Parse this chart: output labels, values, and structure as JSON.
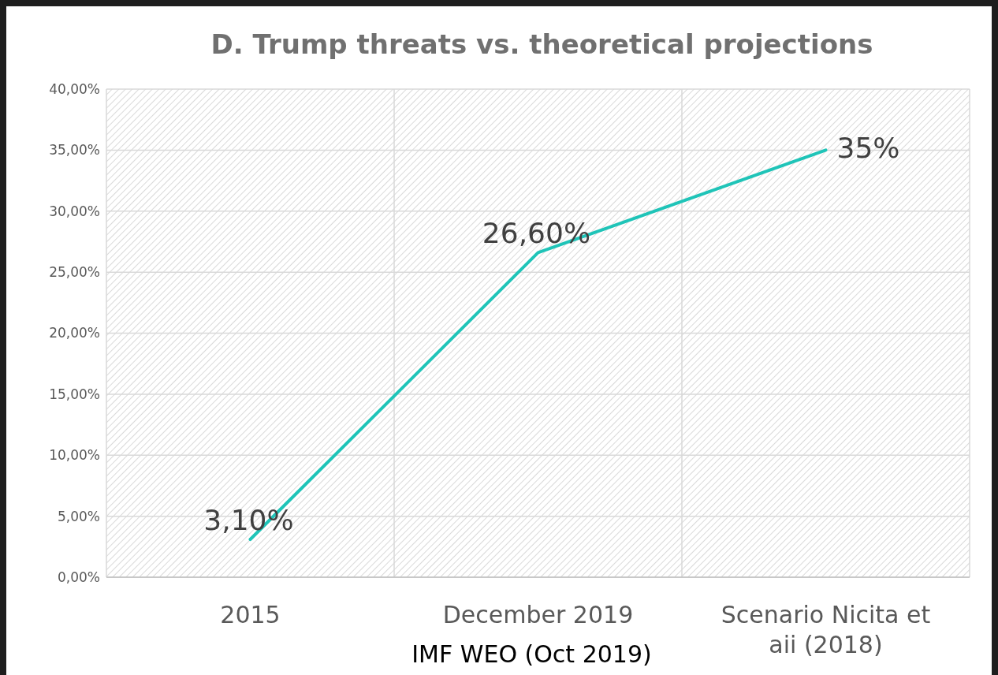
{
  "chart_data": {
    "type": "line",
    "title": "D. Trump threats vs. theoretical projections",
    "categories": [
      "2015",
      "December 2019",
      "Scenario Nicita et aii (2018)"
    ],
    "series": [
      {
        "color": "#1fc4b8",
        "values": [
          3.1,
          26.6,
          35
        ],
        "value_labels": [
          "3,10%",
          "26,60%",
          "35%"
        ]
      }
    ],
    "ylim": [
      0,
      40
    ],
    "yticks": [
      {
        "value": 0,
        "label": "0,00%"
      },
      {
        "value": 5,
        "label": "5,00%"
      },
      {
        "value": 10,
        "label": "10,00%"
      },
      {
        "value": 15,
        "label": "15,00%"
      },
      {
        "value": 20,
        "label": "20,00%"
      },
      {
        "value": 25,
        "label": "25,00%"
      },
      {
        "value": 30,
        "label": "30,00%"
      },
      {
        "value": 35,
        "label": "35,00%"
      },
      {
        "value": 40,
        "label": "40,00%"
      }
    ],
    "grid": true,
    "marker": "none",
    "line_style": "solid",
    "annotations": [
      "IMF WEO (Oct 2019)"
    ]
  }
}
